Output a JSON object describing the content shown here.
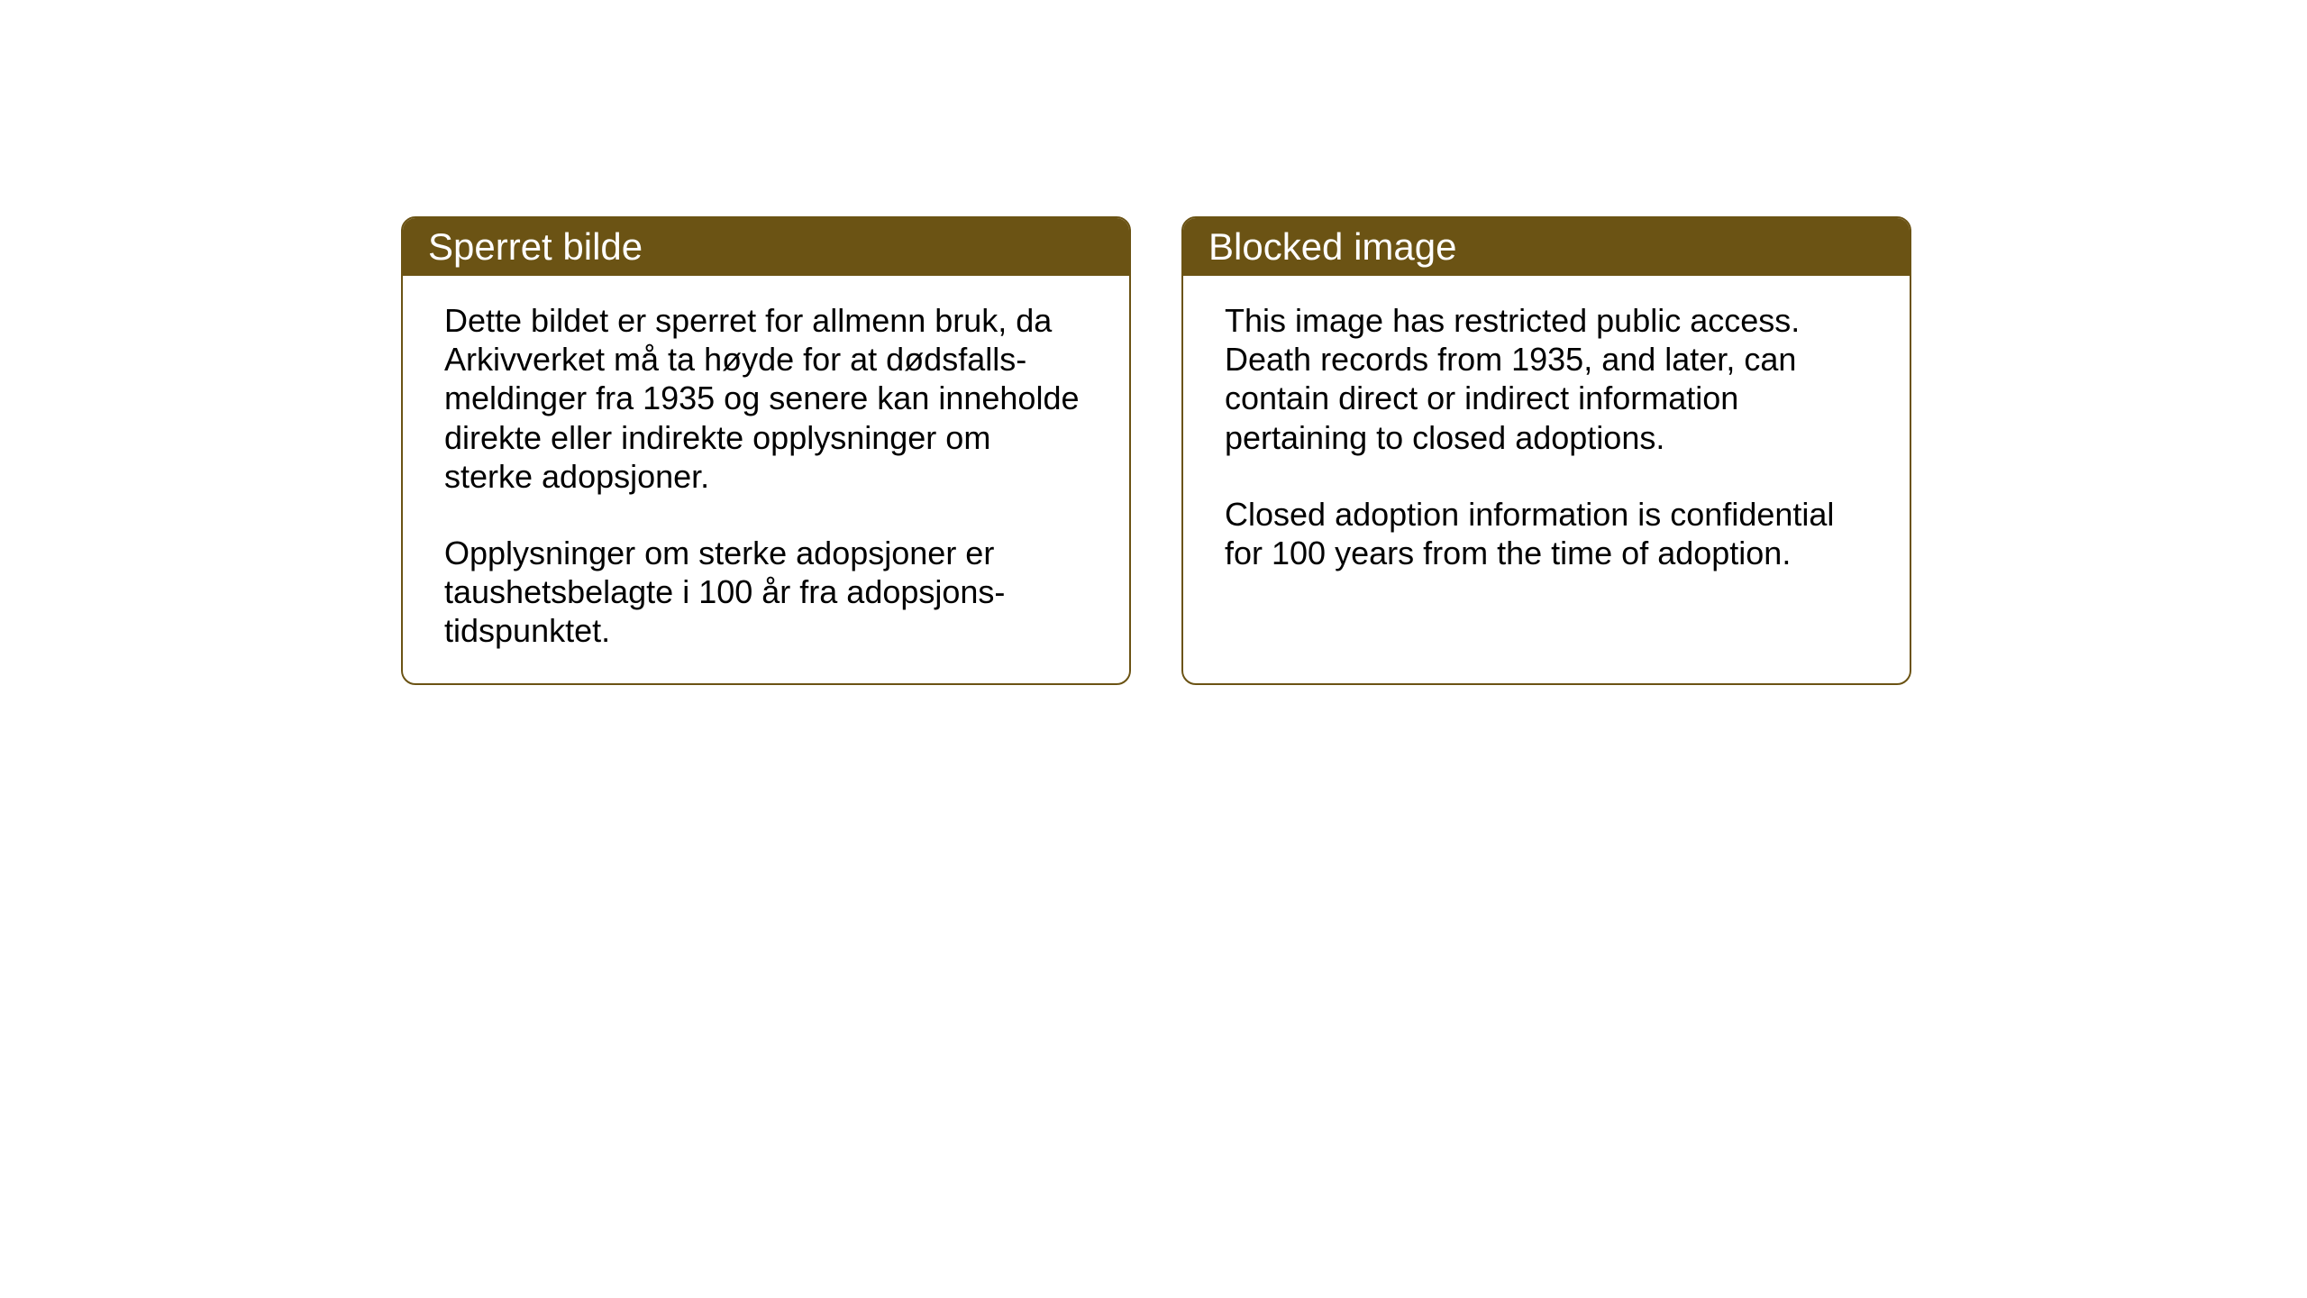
{
  "layout": {
    "background_color": "#ffffff",
    "card_border_color": "#6b5314",
    "card_border_radius": 16,
    "header_bg_color": "#6b5314",
    "header_text_color": "#ffffff",
    "body_text_color": "#000000",
    "header_fontsize": 42,
    "body_fontsize": 36
  },
  "cards": {
    "norwegian": {
      "title": "Sperret bilde",
      "paragraphs": [
        "Dette bildet er sperret for allmenn bruk, da Arkivverket må ta høyde for at dødsfalls-meldinger fra 1935 og senere kan inneholde direkte eller indirekte opplysninger om sterke adopsjoner.",
        "Opplysninger om sterke adopsjoner er taushetsbelagte i 100 år fra adopsjons-tidspunktet."
      ]
    },
    "english": {
      "title": "Blocked image",
      "paragraphs": [
        "This image has restricted public access. Death records from 1935, and later, can contain direct or indirect information pertaining to closed adoptions.",
        "Closed adoption information is confidential for 100 years from the time of adoption."
      ]
    }
  }
}
